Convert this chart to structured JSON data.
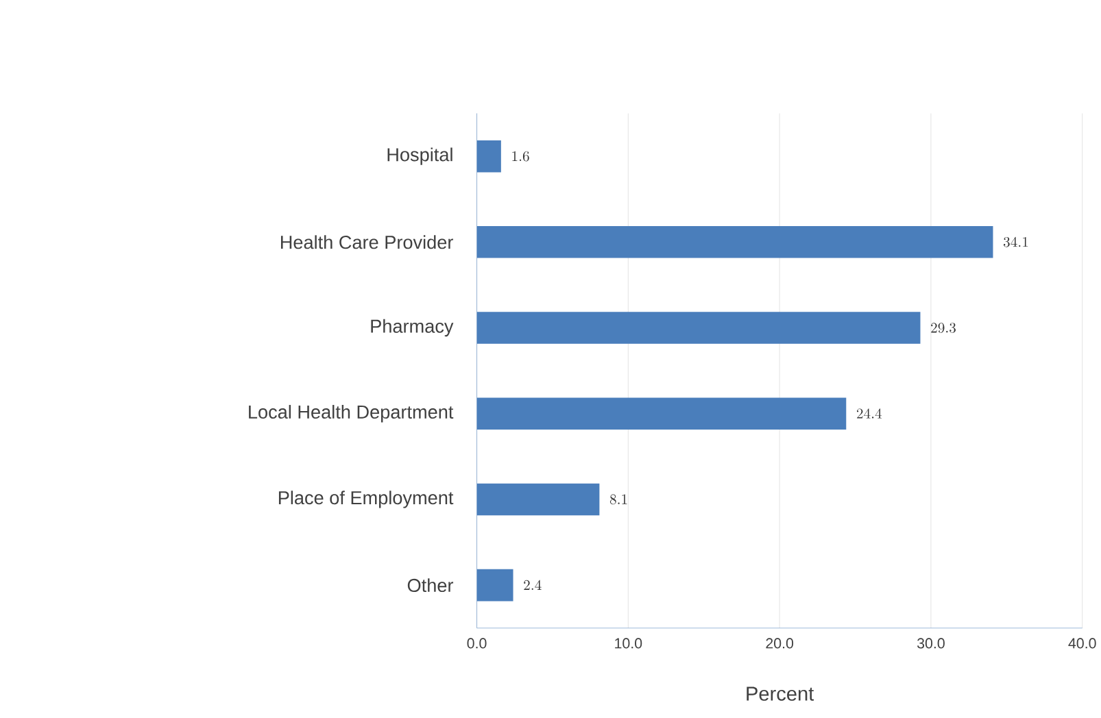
{
  "chart_data": {
    "type": "bar",
    "orientation": "horizontal",
    "xlabel": "Percent",
    "categories": [
      "Hospital",
      "Health Care Provider",
      "Pharmacy",
      "Local Health Department",
      "Place of Employment",
      "Other"
    ],
    "values": [
      1.6,
      34.1,
      29.3,
      24.4,
      8.1,
      2.4
    ],
    "color": "#4a7ebb",
    "xlim": [
      0,
      40
    ],
    "xticks": [
      {
        "value": 0,
        "label": "0.0"
      },
      {
        "value": 10,
        "label": "10.0"
      },
      {
        "value": 20,
        "label": "20.0"
      },
      {
        "value": 30,
        "label": "30.0"
      },
      {
        "value": 40,
        "label": "40.0"
      }
    ],
    "grid": "x",
    "data_labels": true
  }
}
